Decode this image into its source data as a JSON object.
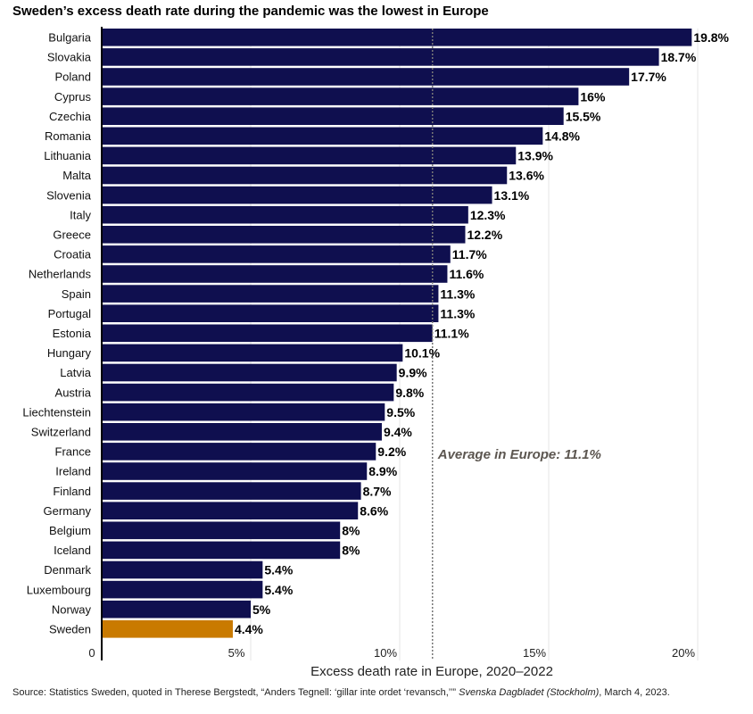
{
  "chart_data": {
    "type": "bar",
    "orientation": "horizontal",
    "title": "Sweden’s excess death rate during the pandemic was the lowest in Europe",
    "xlabel": "Excess death rate in Europe, 2020–2022",
    "ylabel": "",
    "xlim": [
      0,
      20
    ],
    "x_ticks": [
      {
        "value": 0,
        "label": "0"
      },
      {
        "value": 5,
        "label": "5%"
      },
      {
        "value": 10,
        "label": "10%"
      },
      {
        "value": 15,
        "label": "15%"
      },
      {
        "value": 20,
        "label": "20%"
      }
    ],
    "grid": "vertical",
    "categories": [
      "Bulgaria",
      "Slovakia",
      "Poland",
      "Cyprus",
      "Czechia",
      "Romania",
      "Lithuania",
      "Malta",
      "Slovenia",
      "Italy",
      "Greece",
      "Croatia",
      "Netherlands",
      "Spain",
      "Portugal",
      "Estonia",
      "Hungary",
      "Latvia",
      "Austria",
      "Liechtenstein",
      "Switzerland",
      "France",
      "Ireland",
      "Finland",
      "Germany",
      "Belgium",
      "Iceland",
      "Denmark",
      "Luxembourg",
      "Norway",
      "Sweden"
    ],
    "values": [
      19.8,
      18.7,
      17.7,
      16,
      15.5,
      14.8,
      13.9,
      13.6,
      13.1,
      12.3,
      12.2,
      11.7,
      11.6,
      11.3,
      11.3,
      11.1,
      10.1,
      9.9,
      9.8,
      9.5,
      9.4,
      9.2,
      8.9,
      8.7,
      8.6,
      8,
      8,
      5.4,
      5.4,
      5,
      4.4
    ],
    "value_labels": [
      "19.8%",
      "18.7%",
      "17.7%",
      "16%",
      "15.5%",
      "14.8%",
      "13.9%",
      "13.6%",
      "13.1%",
      "12.3%",
      "12.2%",
      "11.7%",
      "11.6%",
      "11.3%",
      "11.3%",
      "11.1%",
      "10.1%",
      "9.9%",
      "9.8%",
      "9.5%",
      "9.4%",
      "9.2%",
      "8.9%",
      "8.7%",
      "8.6%",
      "8%",
      "8%",
      "5.4%",
      "5.4%",
      "5%",
      "4.4%"
    ],
    "highlight": "Sweden",
    "colors": {
      "bar": "#0f0f4f",
      "highlight": "#c97a00",
      "average_line": "#777777",
      "grid": "#e4e4e4"
    },
    "annotations": [
      {
        "type": "reference-line",
        "value": 11.1,
        "label": "Average in Europe: 11.1%"
      }
    ]
  },
  "source": {
    "prefix": "Source: Statistics Sweden, quoted in Therese Bergstedt, “Anders Tegnell: ‘gillar inte ordet ‘revansch,’’” ",
    "publication": "Svenska Dagbladet (Stockholm)",
    "suffix": ", March 4, 2023."
  }
}
